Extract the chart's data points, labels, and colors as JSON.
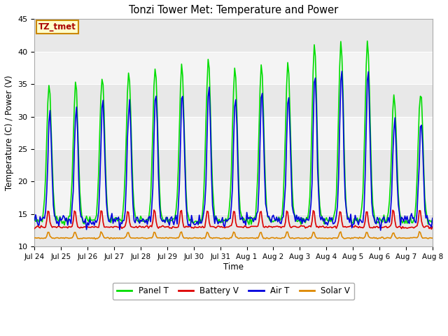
{
  "title": "Tonzi Tower Met: Temperature and Power",
  "xlabel": "Time",
  "ylabel": "Temperature (C) / Power (V)",
  "ylim": [
    10,
    45
  ],
  "tick_labels": [
    "Jul 24",
    "Jul 25",
    "Jul 26",
    "Jul 27",
    "Jul 28",
    "Jul 29",
    "Jul 30",
    "Jul 31",
    "Aug 1",
    "Aug 2",
    "Aug 3",
    "Aug 4",
    "Aug 5",
    "Aug 6",
    "Aug 7",
    "Aug 8"
  ],
  "annotation_text": "TZ_tmet",
  "annotation_box_facecolor": "#ffffcc",
  "annotation_box_edgecolor": "#cc8800",
  "annotation_text_color": "#aa0000",
  "fig_facecolor": "#ffffff",
  "plot_bg_color": "#ffffff",
  "band_color_dark": "#e8e8e8",
  "band_color_light": "#f4f4f4",
  "colors": {
    "panel_t": "#00dd00",
    "battery_v": "#dd0000",
    "air_t": "#0000dd",
    "solar_v": "#dd8800"
  },
  "legend_labels": [
    "Panel T",
    "Battery V",
    "Air T",
    "Solar V"
  ],
  "linewidth": 1.2,
  "yticks": [
    10,
    15,
    20,
    25,
    30,
    35,
    40,
    45
  ],
  "n_ticks": 16
}
